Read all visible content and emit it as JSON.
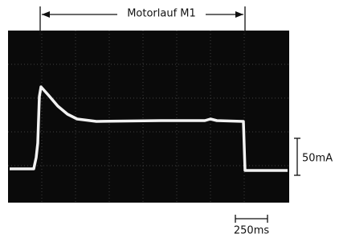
{
  "annotations": {
    "duration": "Motorlauf M1",
    "current_scale": "50mA",
    "time_scale": "250ms"
  }
}
